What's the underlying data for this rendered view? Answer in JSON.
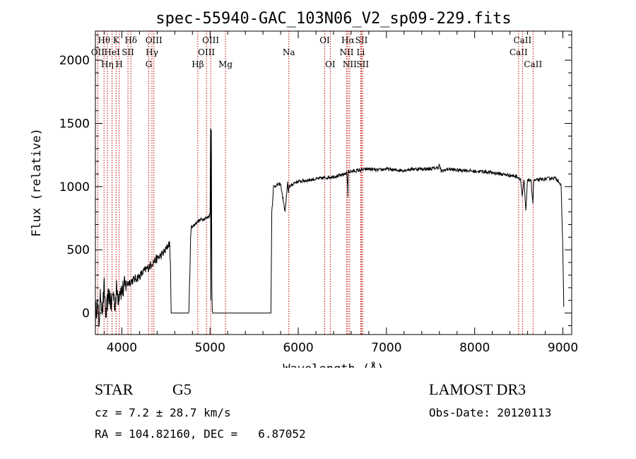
{
  "chart_data": {
    "type": "line",
    "title": "spec-55940-GAC_103N06_V2_sp09-229.fits",
    "xlabel": "Wavelength (Å)",
    "ylabel": "Flux (relative)",
    "xlim": [
      3700,
      9100
    ],
    "ylim": [
      -170,
      2230
    ],
    "xticks": [
      4000,
      5000,
      6000,
      7000,
      8000,
      9000
    ],
    "yticks": [
      0,
      500,
      1000,
      1500,
      2000
    ],
    "series": [
      {
        "name": "flux",
        "x": [
          3700,
          3720,
          3740,
          3760,
          3780,
          3800,
          3820,
          3840,
          3860,
          3880,
          3900,
          3920,
          3940,
          3960,
          3980,
          4000,
          4050,
          4100,
          4150,
          4200,
          4250,
          4300,
          4350,
          4400,
          4450,
          4500,
          4520,
          4540,
          4550,
          4560,
          4600,
          4700,
          4760,
          4770,
          4780,
          4790,
          4800,
          4850,
          4900,
          4950,
          4980,
          5000,
          5005,
          5008,
          5010,
          5015,
          5020,
          5025,
          5030,
          5040,
          5100,
          5500,
          5690,
          5700,
          5710,
          5720,
          5750,
          5800,
          5850,
          5880,
          5890,
          5895,
          5900,
          5910,
          5950,
          6000,
          6100,
          6200,
          6300,
          6400,
          6500,
          6550,
          6560,
          6563,
          6566,
          6570,
          6600,
          6700,
          6800,
          6900,
          7000,
          7100,
          7200,
          7300,
          7400,
          7500,
          7580,
          7600,
          7620,
          7700,
          7800,
          7900,
          8000,
          8100,
          8200,
          8300,
          8400,
          8480,
          8500,
          8520,
          8540,
          8560,
          8580,
          8600,
          8640,
          8660,
          8670,
          8700,
          8800,
          8900,
          8950,
          8980,
          9000,
          9010
        ],
        "y": [
          -50,
          100,
          -80,
          150,
          20,
          200,
          -30,
          100,
          150,
          50,
          170,
          70,
          180,
          130,
          200,
          170,
          230,
          250,
          270,
          290,
          330,
          360,
          400,
          430,
          460,
          500,
          530,
          560,
          400,
          0,
          0,
          0,
          0,
          300,
          600,
          700,
          680,
          720,
          740,
          750,
          760,
          780,
          1460,
          100,
          500,
          1450,
          200,
          20,
          0,
          0,
          0,
          0,
          0,
          800,
          900,
          1000,
          1010,
          1020,
          800,
          1030,
          950,
          1000,
          1010,
          1000,
          1030,
          1040,
          1050,
          1060,
          1070,
          1080,
          1090,
          1110,
          1000,
          920,
          1100,
          1120,
          1120,
          1130,
          1140,
          1130,
          1140,
          1130,
          1130,
          1140,
          1140,
          1140,
          1150,
          1170,
          1120,
          1140,
          1130,
          1130,
          1120,
          1120,
          1110,
          1100,
          1090,
          1080,
          1070,
          1060,
          920,
          1050,
          800,
          1060,
          1040,
          870,
          1050,
          1050,
          1060,
          1070,
          1050,
          1000,
          500,
          50
        ]
      }
    ],
    "lines": [
      {
        "label": "Hθ",
        "wavelength": 3798,
        "row": 1
      },
      {
        "label": "OII",
        "wavelength": 3727,
        "row": 2
      },
      {
        "label": "Hη",
        "wavelength": 3835,
        "row": 3
      },
      {
        "label": "HeI",
        "wavelength": 3889,
        "row": 2
      },
      {
        "label": "K",
        "wavelength": 3934,
        "row": 1
      },
      {
        "label": "H",
        "wavelength": 3969,
        "row": 3
      },
      {
        "label": "SII",
        "wavelength": 4069,
        "row": 2
      },
      {
        "label": "Hδ",
        "wavelength": 4102,
        "row": 1
      },
      {
        "label": "OIII",
        "wavelength": 4363,
        "row": 1
      },
      {
        "label": "Hγ",
        "wavelength": 4341,
        "row": 2
      },
      {
        "label": "G",
        "wavelength": 4305,
        "row": 3
      },
      {
        "label": "Hβ",
        "wavelength": 4861,
        "row": 3
      },
      {
        "label": "OIII",
        "wavelength": 4959,
        "row": 2
      },
      {
        "label": "OIII",
        "wavelength": 5007,
        "row": 1
      },
      {
        "label": "Mg",
        "wavelength": 5175,
        "row": 3
      },
      {
        "label": "Na",
        "wavelength": 5893,
        "row": 2
      },
      {
        "label": "OI",
        "wavelength": 6300,
        "row": 1
      },
      {
        "label": "OI",
        "wavelength": 6363,
        "row": 3
      },
      {
        "label": "NII",
        "wavelength": 6548,
        "row": 2
      },
      {
        "label": "Hα",
        "wavelength": 6563,
        "row": 1
      },
      {
        "label": "NII",
        "wavelength": 6583,
        "row": 3
      },
      {
        "label": "Li",
        "wavelength": 6708,
        "row": 2
      },
      {
        "label": "SII",
        "wavelength": 6717,
        "row": 1
      },
      {
        "label": "SII",
        "wavelength": 6731,
        "row": 3
      },
      {
        "label": "CaII",
        "wavelength": 8498,
        "row": 2
      },
      {
        "label": "CaII",
        "wavelength": 8542,
        "row": 1
      },
      {
        "label": "CaII",
        "wavelength": 8662,
        "row": 3
      }
    ]
  },
  "info": {
    "class": "STAR",
    "subclass": "G5",
    "survey": "LAMOST DR3",
    "cz": "cz = 7.2 ± 28.7 km/s",
    "obs_date": "Obs-Date: 20120113",
    "coords": "RA = 104.82160, DEC =   6.87052"
  }
}
